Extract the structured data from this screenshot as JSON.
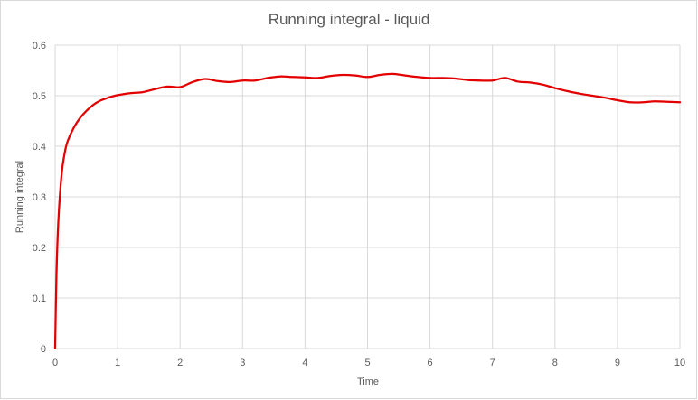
{
  "chart_data": {
    "type": "line",
    "title": "Running integral - liquid",
    "xlabel": "Time",
    "ylabel": "Running integral",
    "xlim": [
      0,
      10
    ],
    "ylim": [
      0,
      0.6
    ],
    "x_ticks": [
      "0",
      "1",
      "2",
      "3",
      "4",
      "5",
      "6",
      "7",
      "8",
      "9",
      "10"
    ],
    "y_ticks": [
      "0",
      "0.1",
      "0.2",
      "0.3",
      "0.4",
      "0.5",
      "0.6"
    ],
    "grid": true,
    "legend": "none",
    "series_color": "#e30000",
    "x": [
      0,
      0.02,
      0.05,
      0.1,
      0.15,
      0.2,
      0.3,
      0.4,
      0.5,
      0.6,
      0.7,
      0.8,
      0.9,
      1.0,
      1.2,
      1.4,
      1.6,
      1.8,
      2.0,
      2.2,
      2.4,
      2.6,
      2.8,
      3.0,
      3.2,
      3.4,
      3.6,
      3.8,
      4.0,
      4.2,
      4.4,
      4.6,
      4.8,
      5.0,
      5.2,
      5.4,
      5.6,
      5.8,
      6.0,
      6.2,
      6.4,
      6.6,
      6.8,
      7.0,
      7.2,
      7.4,
      7.6,
      7.8,
      8.0,
      8.2,
      8.4,
      8.6,
      8.8,
      9.0,
      9.2,
      9.4,
      9.6,
      9.8,
      10.0
    ],
    "y": [
      0,
      0.14,
      0.25,
      0.34,
      0.385,
      0.41,
      0.437,
      0.456,
      0.47,
      0.481,
      0.489,
      0.494,
      0.498,
      0.501,
      0.505,
      0.507,
      0.513,
      0.518,
      0.517,
      0.527,
      0.533,
      0.529,
      0.527,
      0.53,
      0.53,
      0.535,
      0.538,
      0.537,
      0.536,
      0.535,
      0.539,
      0.541,
      0.54,
      0.537,
      0.541,
      0.543,
      0.54,
      0.537,
      0.535,
      0.535,
      0.534,
      0.531,
      0.53,
      0.53,
      0.535,
      0.528,
      0.526,
      0.522,
      0.515,
      0.509,
      0.504,
      0.5,
      0.496,
      0.491,
      0.487,
      0.487,
      0.489,
      0.488,
      0.487
    ]
  }
}
